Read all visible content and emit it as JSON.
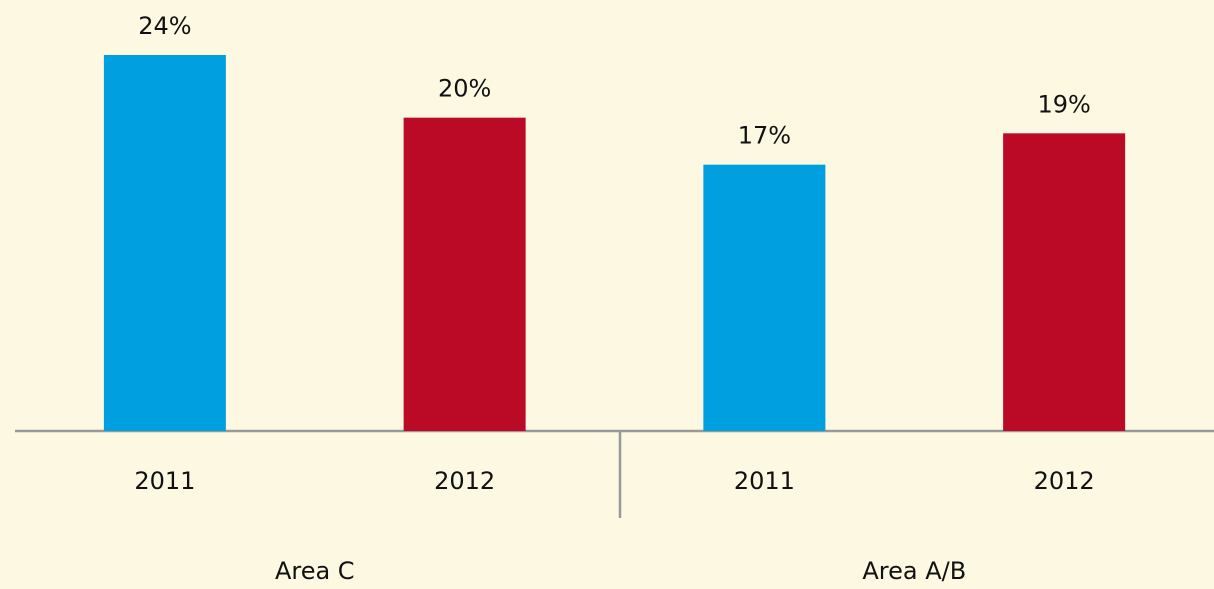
{
  "chart_data": {
    "type": "bar",
    "categories": [
      "2011",
      "2012",
      "2011",
      "2012"
    ],
    "groups": [
      "Area C",
      "Area A/B"
    ],
    "values": [
      24,
      20,
      17,
      19
    ],
    "value_labels": [
      "24%",
      "20%",
      "17%",
      "19%"
    ],
    "colors": [
      "#009fdf",
      "#bb0a25",
      "#009fdf",
      "#bb0a25"
    ]
  }
}
